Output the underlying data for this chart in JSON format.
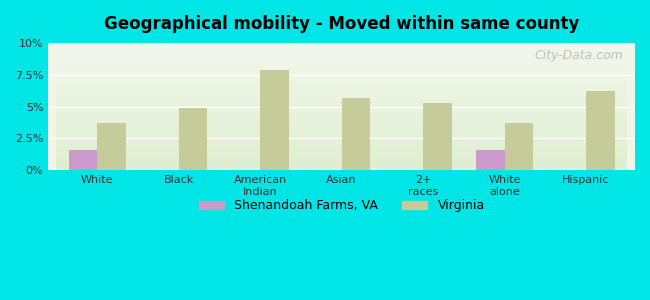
{
  "title": "Geographical mobility - Moved within same county",
  "categories": [
    "White",
    "Black",
    "American\nIndian",
    "Asian",
    "2+\nraces",
    "White\nalone",
    "Hispanic"
  ],
  "shenandoah_values": [
    1.6,
    0.0,
    0.0,
    0.0,
    0.0,
    1.6,
    0.0
  ],
  "virginia_values": [
    3.7,
    4.9,
    7.9,
    5.7,
    5.3,
    3.7,
    6.2
  ],
  "shenandoah_color": "#cc99cc",
  "virginia_color": "#c5cc99",
  "background_outer": "#00e5e5",
  "background_inner": "#f0f5e8",
  "ylim": [
    0,
    10
  ],
  "yticks": [
    0,
    2.5,
    5.0,
    7.5,
    10.0
  ],
  "ytick_labels": [
    "0%",
    "2.5%",
    "5%",
    "7.5%",
    "10%"
  ],
  "bar_width": 0.35,
  "legend_labels": [
    "Shenandoah Farms, VA",
    "Virginia"
  ],
  "watermark": "City-Data.com"
}
